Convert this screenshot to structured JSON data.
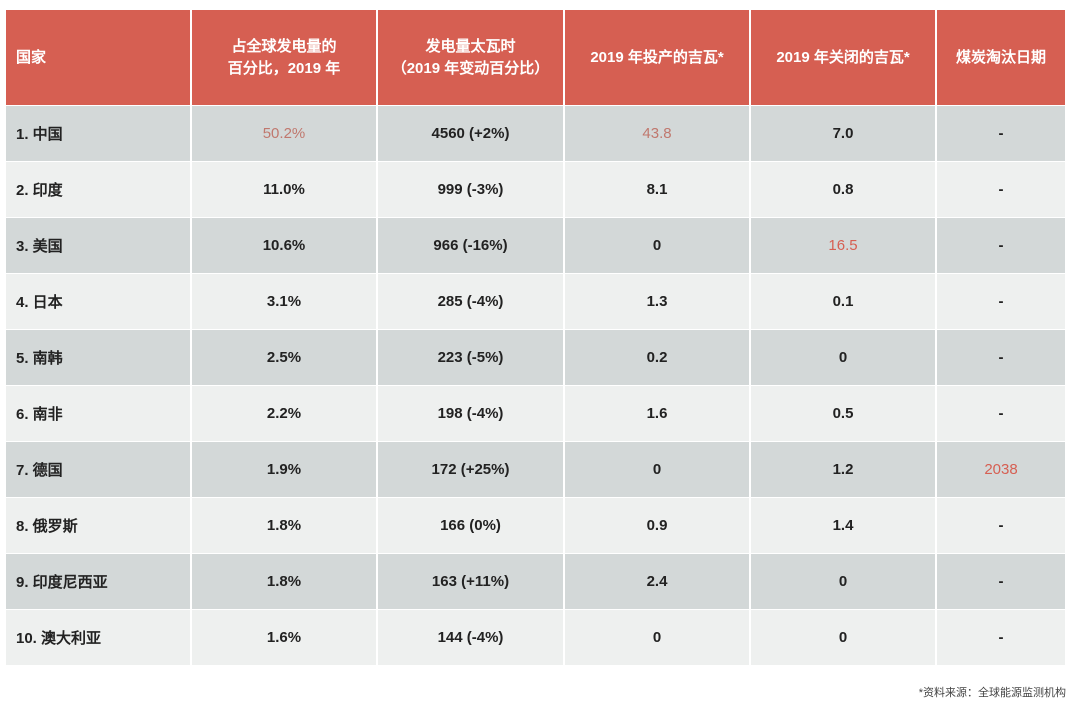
{
  "table": {
    "header_color": "#d65f52",
    "row_colors": {
      "dark": "#d3d8d8",
      "light": "#eef0ef"
    },
    "highlight_color": "#d65f52",
    "columns": [
      "国家",
      "占全球发电量的\n百分比，2019 年",
      "发电量太瓦时\n（2019 年变动百分比）",
      "2019 年投产的吉瓦*",
      "2019 年关闭的吉瓦*",
      "煤炭淘汰日期"
    ],
    "rows": [
      {
        "country": "1. 中国",
        "share": "50.2%",
        "twh": "4560 (+2%)",
        "gw_added": "43.8",
        "gw_closed": "7.0",
        "phaseout": "-"
      },
      {
        "country": "2. 印度",
        "share": "11.0%",
        "twh": "999 (-3%)",
        "gw_added": "8.1",
        "gw_closed": "0.8",
        "phaseout": "-"
      },
      {
        "country": "3. 美国",
        "share": "10.6%",
        "twh": "966 (-16%)",
        "gw_added": "0",
        "gw_closed": "16.5",
        "phaseout": "-"
      },
      {
        "country": "4. 日本",
        "share": "3.1%",
        "twh": "285 (-4%)",
        "gw_added": "1.3",
        "gw_closed": "0.1",
        "phaseout": "-"
      },
      {
        "country": "5. 南韩",
        "share": "2.5%",
        "twh": "223 (-5%)",
        "gw_added": "0.2",
        "gw_closed": "0",
        "phaseout": "-"
      },
      {
        "country": "6. 南非",
        "share": "2.2%",
        "twh": "198 (-4%)",
        "gw_added": "1.6",
        "gw_closed": "0.5",
        "phaseout": "-"
      },
      {
        "country": "7. 德国",
        "share": "1.9%",
        "twh": "172 (+25%)",
        "gw_added": "0",
        "gw_closed": "1.2",
        "phaseout": "2038"
      },
      {
        "country": "8. 俄罗斯",
        "share": "1.8%",
        "twh": "166 (0%)",
        "gw_added": "0.9",
        "gw_closed": "1.4",
        "phaseout": "-"
      },
      {
        "country": "9. 印度尼西亚",
        "share": "1.8%",
        "twh": "163 (+11%)",
        "gw_added": "2.4",
        "gw_closed": "0",
        "phaseout": "-"
      },
      {
        "country": "10. 澳大利亚",
        "share": "1.6%",
        "twh": "144 (-4%)",
        "gw_added": "0",
        "gw_closed": "0",
        "phaseout": "-"
      }
    ]
  },
  "footnote": "*资料来源：全球能源监测机构"
}
